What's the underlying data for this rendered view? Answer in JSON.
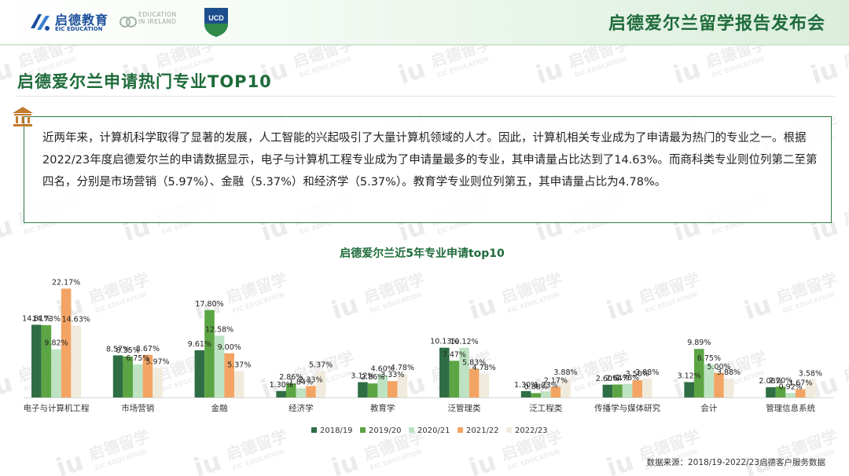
{
  "header": {
    "title": "启德爱尔兰留学报告发布会",
    "logo_eic_cn": "启德教育",
    "logo_eic_en": "EIC EDUCATION",
    "logo_ei_lines": [
      "EDUCATION",
      "IN IRELAND",
      ""
    ],
    "logo_ucd": "UCD"
  },
  "watermark": {
    "text_cn": "启德留学",
    "text_en": "EIC EDUCATION"
  },
  "page_title": "启德爱尔兰申请热门专业TOP10",
  "paragraph": "近两年来，计算机科学取得了显著的发展，人工智能的兴起吸引了大量计算机领域的人才。因此，计算机相关专业成为了申请最为热门的专业之一。根据2022/23年度启德爱尔兰的申请数据显示，电子与计算机工程专业成为了申请量最多的专业，其申请量占比达到了14.63%。而商科类专业则位列第二至第四名，分别是市场营销（5.97%）、金融（5.37%）和经济学（5.37%）。教育学专业则位列第五，其申请量占比为4.78%。",
  "chart_data": {
    "type": "bar",
    "title": "启德爱尔兰近5年专业申请top10",
    "xlabel": "",
    "ylabel": "",
    "ylim": [
      0,
      24
    ],
    "grid": false,
    "legend_position": "bottom",
    "value_suffix": "%",
    "categories": [
      "电子与计算机工程",
      "市场营销",
      "金融",
      "经济学",
      "教育学",
      "泛管理类",
      "泛工程类",
      "传播学与媒体研究",
      "会计",
      "管理信息系统"
    ],
    "series": [
      {
        "name": "2018/19",
        "color": "#2f6e45",
        "values": [
          14.81,
          8.57,
          9.61,
          1.3,
          3.12,
          10.13,
          1.3,
          2.6,
          3.12,
          2.08
        ]
      },
      {
        "name": "2019/20",
        "color": "#5ca544",
        "values": [
          14.73,
          8.35,
          17.8,
          2.86,
          2.86,
          7.47,
          0.88,
          2.64,
          9.89,
          2.2
        ]
      },
      {
        "name": "2020/21",
        "color": "#bde3c2",
        "values": [
          9.82,
          6.75,
          12.58,
          1.84,
          4.6,
          10.12,
          1.23,
          2.76,
          6.75,
          0.92
        ]
      },
      {
        "name": "2021/22",
        "color": "#f3a464",
        "values": [
          22.17,
          8.67,
          9.0,
          2.33,
          3.33,
          5.83,
          2.17,
          3.5,
          5.0,
          1.67
        ]
      },
      {
        "name": "2022/23",
        "color": "#f1ebdd",
        "values": [
          14.63,
          5.97,
          5.37,
          5.37,
          4.78,
          4.78,
          3.88,
          3.88,
          3.88,
          3.58
        ]
      }
    ]
  },
  "source_note": "数据来源：2018/19-2022/23启德客户服务数据"
}
